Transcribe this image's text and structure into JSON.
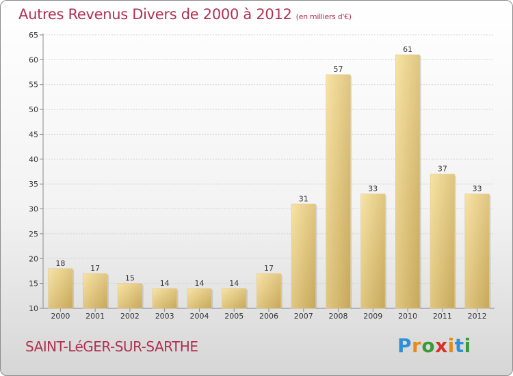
{
  "title": "Autres Revenus Divers de 2000 à 2012",
  "title_unit": "(en milliers d'€)",
  "place": "SAINT-LéGER-SUR-SARTHE",
  "logo": {
    "letters": [
      "P",
      "r",
      "o",
      "x",
      "i",
      "t",
      "i"
    ],
    "colors": [
      "#2f8fd8",
      "#e88a1a",
      "#3a9a3a",
      "#d8302a",
      "#e88a1a",
      "#2f8fd8",
      "#3a9a3a"
    ]
  },
  "colors": {
    "accent": "#b03050",
    "bar_light": "#f5dc98",
    "bar_dark": "#c8aa5a"
  },
  "chart_data": {
    "type": "bar",
    "categories": [
      "2000",
      "2001",
      "2002",
      "2003",
      "2004",
      "2005",
      "2006",
      "2007",
      "2008",
      "2009",
      "2010",
      "2011",
      "2012"
    ],
    "values": [
      18,
      17,
      15,
      14,
      14,
      14,
      17,
      31,
      57,
      33,
      61,
      37,
      33
    ],
    "ylim": [
      10,
      65
    ],
    "yticks": [
      10,
      15,
      20,
      25,
      30,
      35,
      40,
      45,
      50,
      55,
      60,
      65
    ],
    "grid": true
  }
}
